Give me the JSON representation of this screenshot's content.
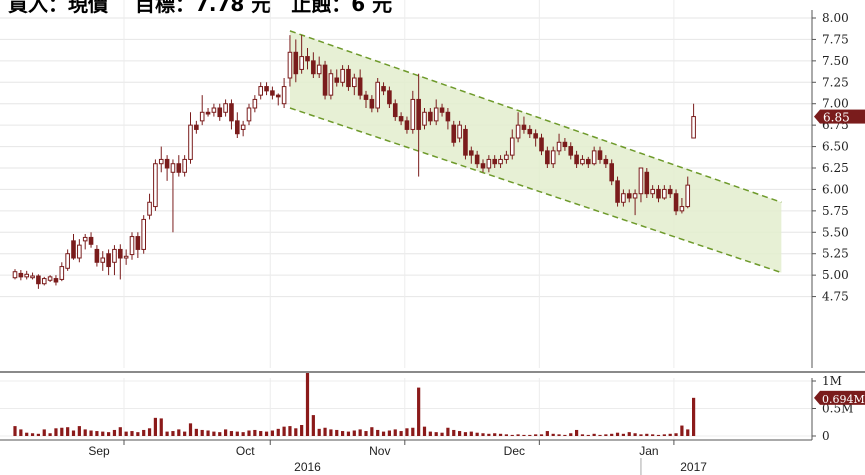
{
  "title": "買入：現價　 目標：7.78 元　止蝕：6 元",
  "chart_data": {
    "type": "candlestick",
    "price_axis": {
      "ticks": [
        "8.00",
        "7.75",
        "7.50",
        "7.25",
        "7.00",
        "6.75",
        "6.50",
        "6.25",
        "6.00",
        "5.75",
        "5.50",
        "5.25",
        "5.00",
        "4.75"
      ],
      "min": 4.5,
      "max": 8.0
    },
    "volume_axis": {
      "ticks": [
        "1M",
        "0.5M",
        "0"
      ],
      "max": 1200000
    },
    "last_price_label": "6.85",
    "last_volume_label": "0.694M",
    "x_labels": [
      {
        "label": "Sep",
        "index": 20
      },
      {
        "label": "Oct",
        "index": 45
      },
      {
        "label": "Nov",
        "index": 68
      },
      {
        "label": "Dec",
        "index": 91
      },
      {
        "label": "Jan",
        "index": 114
      }
    ],
    "year_labels": [
      {
        "label": "2016",
        "index": 50
      },
      {
        "label": "2017",
        "index": 116
      }
    ],
    "channel": {
      "upper": [
        {
          "i": 47,
          "v": 7.85
        },
        {
          "i": 131,
          "v": 5.85
        }
      ],
      "lower": [
        {
          "i": 47,
          "v": 6.95
        },
        {
          "i": 131,
          "v": 5.03
        }
      ]
    },
    "candles": [
      [
        4.97,
        5.04,
        5.07,
        4.95,
        180000
      ],
      [
        5.02,
        4.98,
        5.06,
        4.94,
        120000
      ],
      [
        4.98,
        5.01,
        5.05,
        4.95,
        60000
      ],
      [
        4.97,
        4.99,
        5.03,
        4.95,
        50000
      ],
      [
        4.99,
        4.9,
        5.01,
        4.84,
        40000
      ],
      [
        4.9,
        4.96,
        4.98,
        4.88,
        120000
      ],
      [
        4.94,
        4.98,
        5.0,
        4.92,
        50000
      ],
      [
        4.96,
        4.92,
        5.0,
        4.88,
        140000
      ],
      [
        4.95,
        5.1,
        5.15,
        4.93,
        150000
      ],
      [
        5.08,
        5.25,
        5.3,
        5.05,
        160000
      ],
      [
        5.4,
        5.2,
        5.48,
        5.18,
        100000
      ],
      [
        5.2,
        5.35,
        5.42,
        5.15,
        180000
      ],
      [
        5.4,
        5.44,
        5.48,
        5.3,
        120000
      ],
      [
        5.44,
        5.36,
        5.5,
        5.32,
        100000
      ],
      [
        5.3,
        5.15,
        5.35,
        5.1,
        90000
      ],
      [
        5.15,
        5.2,
        5.28,
        5.05,
        80000
      ],
      [
        5.25,
        5.1,
        5.3,
        5.0,
        70000
      ],
      [
        5.15,
        5.3,
        5.35,
        5.0,
        110000
      ],
      [
        5.3,
        5.2,
        5.36,
        4.95,
        160000
      ],
      [
        5.2,
        5.22,
        5.3,
        5.12,
        80000
      ],
      [
        5.24,
        5.45,
        5.5,
        5.18,
        90000
      ],
      [
        5.45,
        5.3,
        5.5,
        5.2,
        70000
      ],
      [
        5.3,
        5.65,
        5.7,
        5.25,
        110000
      ],
      [
        5.7,
        5.85,
        5.95,
        5.65,
        140000
      ],
      [
        5.8,
        6.3,
        6.35,
        5.75,
        330000
      ],
      [
        6.3,
        6.35,
        6.5,
        6.2,
        320000
      ],
      [
        6.35,
        6.25,
        6.4,
        6.1,
        80000
      ],
      [
        6.2,
        6.3,
        6.35,
        5.5,
        90000
      ],
      [
        6.3,
        6.2,
        6.4,
        6.15,
        120000
      ],
      [
        6.2,
        6.35,
        6.4,
        6.15,
        80000
      ],
      [
        6.35,
        6.75,
        6.9,
        6.3,
        230000
      ],
      [
        6.75,
        6.7,
        6.8,
        6.65,
        130000
      ],
      [
        6.8,
        6.9,
        7.1,
        6.75,
        110000
      ],
      [
        6.9,
        6.88,
        6.95,
        6.85,
        100000
      ],
      [
        6.9,
        6.95,
        7.0,
        6.85,
        80000
      ],
      [
        6.95,
        6.85,
        7.0,
        6.8,
        70000
      ],
      [
        6.9,
        7.0,
        7.05,
        6.85,
        120000
      ],
      [
        7.0,
        6.8,
        7.05,
        6.7,
        90000
      ],
      [
        6.8,
        6.65,
        6.9,
        6.6,
        80000
      ],
      [
        6.7,
        6.75,
        6.8,
        6.62,
        70000
      ],
      [
        6.8,
        6.95,
        7.0,
        6.75,
        100000
      ],
      [
        6.95,
        7.05,
        7.1,
        6.9,
        110000
      ],
      [
        7.1,
        7.2,
        7.25,
        7.05,
        90000
      ],
      [
        7.2,
        7.15,
        7.25,
        7.1,
        80000
      ],
      [
        7.15,
        7.1,
        7.2,
        7.05,
        100000
      ],
      [
        7.1,
        7.08,
        7.12,
        6.98,
        130000
      ],
      [
        7.0,
        7.2,
        7.3,
        6.95,
        170000
      ],
      [
        7.3,
        7.6,
        7.8,
        7.2,
        180000
      ],
      [
        7.6,
        7.35,
        7.75,
        7.25,
        140000
      ],
      [
        7.4,
        7.55,
        7.8,
        7.35,
        200000
      ],
      [
        7.55,
        7.5,
        7.65,
        7.4,
        1150000
      ],
      [
        7.5,
        7.35,
        7.6,
        7.3,
        380000
      ],
      [
        7.35,
        7.45,
        7.55,
        7.3,
        130000
      ],
      [
        7.45,
        7.1,
        7.5,
        7.05,
        150000
      ],
      [
        7.1,
        7.35,
        7.4,
        7.05,
        120000
      ],
      [
        7.3,
        7.25,
        7.4,
        7.2,
        110000
      ],
      [
        7.25,
        7.4,
        7.45,
        7.2,
        90000
      ],
      [
        7.4,
        7.2,
        7.45,
        7.15,
        80000
      ],
      [
        7.2,
        7.3,
        7.35,
        7.1,
        100000
      ],
      [
        7.3,
        7.1,
        7.4,
        7.05,
        120000
      ],
      [
        7.1,
        7.05,
        7.15,
        6.95,
        90000
      ],
      [
        7.05,
        6.95,
        7.1,
        6.9,
        160000
      ],
      [
        6.95,
        7.25,
        7.3,
        6.9,
        110000
      ],
      [
        7.2,
        7.15,
        7.25,
        7.1,
        80000
      ],
      [
        7.15,
        7.0,
        7.2,
        6.95,
        100000
      ],
      [
        7.0,
        6.85,
        7.05,
        6.8,
        120000
      ],
      [
        6.85,
        6.8,
        6.9,
        6.75,
        90000
      ],
      [
        6.8,
        6.7,
        6.85,
        6.65,
        140000
      ],
      [
        6.7,
        7.05,
        7.15,
        6.65,
        150000
      ],
      [
        7.05,
        6.7,
        7.35,
        6.15,
        880000
      ],
      [
        6.75,
        6.9,
        6.95,
        6.7,
        170000
      ],
      [
        6.9,
        6.8,
        6.95,
        6.75,
        80000
      ],
      [
        6.8,
        6.95,
        7.05,
        6.75,
        70000
      ],
      [
        6.95,
        6.9,
        7.0,
        6.85,
        60000
      ],
      [
        6.9,
        6.8,
        6.95,
        6.7,
        150000
      ],
      [
        6.75,
        6.55,
        6.8,
        6.5,
        110000
      ],
      [
        6.6,
        6.75,
        6.8,
        6.55,
        90000
      ],
      [
        6.7,
        6.4,
        6.75,
        6.35,
        70000
      ],
      [
        6.45,
        6.4,
        6.5,
        6.3,
        80000
      ],
      [
        6.4,
        6.3,
        6.45,
        6.25,
        60000
      ],
      [
        6.3,
        6.25,
        6.35,
        6.2,
        50000
      ],
      [
        6.25,
        6.35,
        6.4,
        6.2,
        40000
      ],
      [
        6.35,
        6.3,
        6.4,
        6.25,
        50000
      ],
      [
        6.3,
        6.35,
        6.4,
        6.25,
        40000
      ],
      [
        6.35,
        6.4,
        6.45,
        6.3,
        30000
      ],
      [
        6.4,
        6.6,
        6.7,
        6.35,
        20000
      ],
      [
        6.6,
        6.75,
        6.9,
        6.55,
        30000
      ],
      [
        6.75,
        6.7,
        6.85,
        6.65,
        20000
      ],
      [
        6.7,
        6.65,
        6.75,
        6.6,
        20000
      ],
      [
        6.65,
        6.6,
        6.7,
        6.5,
        30000
      ],
      [
        6.6,
        6.45,
        6.65,
        6.4,
        30000
      ],
      [
        6.45,
        6.3,
        6.5,
        6.25,
        90000
      ],
      [
        6.3,
        6.45,
        6.5,
        6.25,
        40000
      ],
      [
        6.45,
        6.55,
        6.65,
        6.4,
        30000
      ],
      [
        6.55,
        6.5,
        6.6,
        6.45,
        20000
      ],
      [
        6.5,
        6.4,
        6.55,
        6.35,
        50000
      ],
      [
        6.4,
        6.3,
        6.45,
        6.25,
        110000
      ],
      [
        6.3,
        6.35,
        6.4,
        6.28,
        30000
      ],
      [
        6.35,
        6.3,
        6.38,
        6.25,
        20000
      ],
      [
        6.3,
        6.45,
        6.5,
        6.28,
        40000
      ],
      [
        6.45,
        6.35,
        6.5,
        6.3,
        20000
      ],
      [
        6.35,
        6.3,
        6.4,
        6.25,
        30000
      ],
      [
        6.3,
        6.1,
        6.35,
        6.05,
        40000
      ],
      [
        6.1,
        5.85,
        6.15,
        5.8,
        60000
      ],
      [
        5.85,
        5.95,
        6.0,
        5.8,
        40000
      ],
      [
        5.95,
        5.9,
        6.0,
        5.85,
        70000
      ],
      [
        5.9,
        5.95,
        6.0,
        5.7,
        50000
      ],
      [
        5.95,
        6.25,
        6.25,
        5.85,
        30000
      ],
      [
        6.2,
        5.95,
        6.25,
        5.9,
        40000
      ],
      [
        5.95,
        6.0,
        6.05,
        5.9,
        30000
      ],
      [
        6.0,
        5.9,
        6.05,
        5.85,
        20000
      ],
      [
        5.9,
        6.0,
        6.05,
        5.88,
        30000
      ],
      [
        6.0,
        5.95,
        6.05,
        5.9,
        40000
      ],
      [
        5.95,
        5.75,
        6.0,
        5.7,
        50000
      ],
      [
        5.75,
        5.8,
        5.9,
        5.72,
        190000
      ],
      [
        5.8,
        6.05,
        6.15,
        5.78,
        120000
      ],
      [
        6.6,
        6.85,
        7.0,
        6.6,
        694000
      ]
    ]
  }
}
